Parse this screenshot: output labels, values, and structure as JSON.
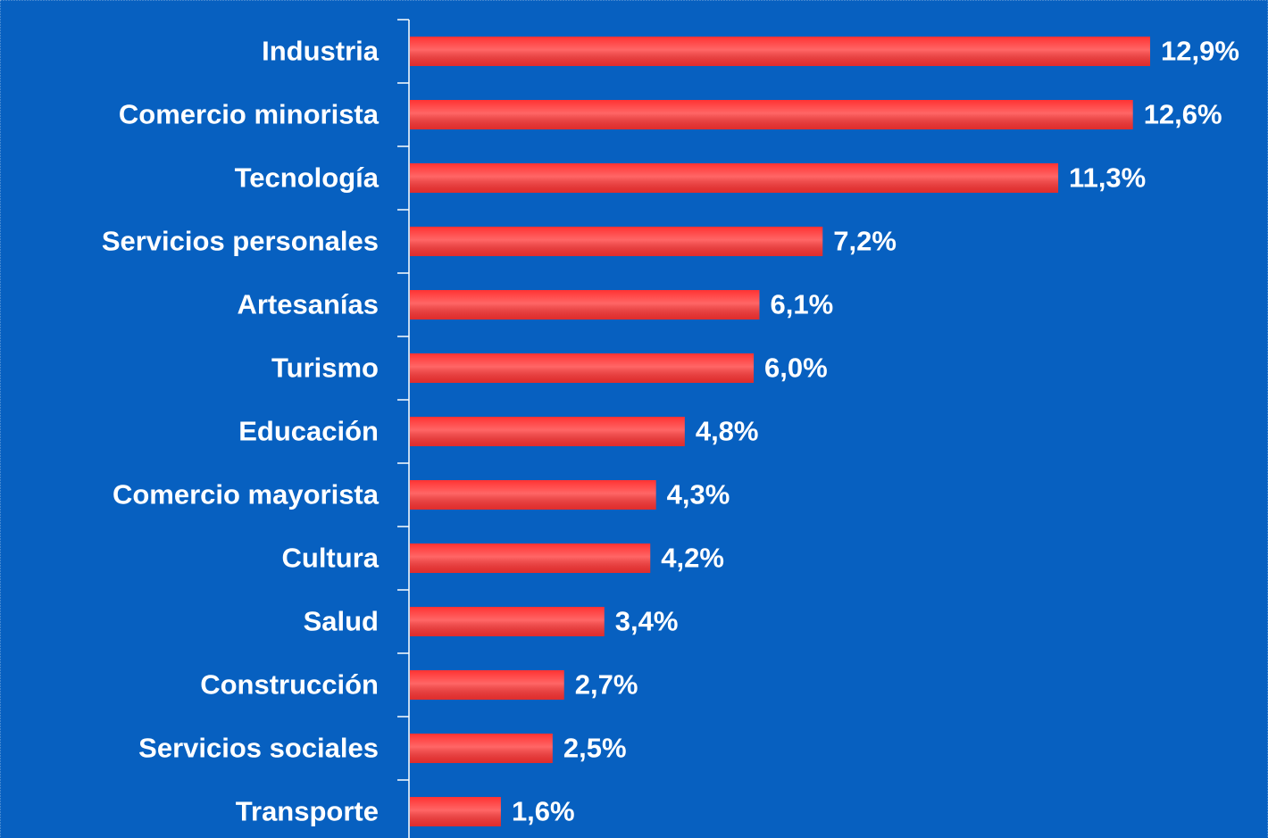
{
  "chart_data": {
    "type": "bar",
    "orientation": "horizontal",
    "categories": [
      "Industria",
      "Comercio minorista",
      "Tecnología",
      "Servicios personales",
      "Artesanías",
      "Turismo",
      "Educación",
      "Comercio mayorista",
      "Cultura",
      "Salud",
      "Construcción",
      "Servicios sociales",
      "Transporte"
    ],
    "values": [
      12.9,
      12.6,
      11.3,
      7.2,
      6.1,
      6.0,
      4.8,
      4.3,
      4.2,
      3.4,
      2.7,
      2.5,
      1.6
    ],
    "value_labels": [
      "12,9%",
      "12,6%",
      "11,3%",
      "7,2%",
      "6,1%",
      "6,0%",
      "4,8%",
      "4,3%",
      "4,2%",
      "3,4%",
      "2,7%",
      "2,5%",
      "1,6%"
    ],
    "color": "#ff3333",
    "background": "#0760c0"
  }
}
